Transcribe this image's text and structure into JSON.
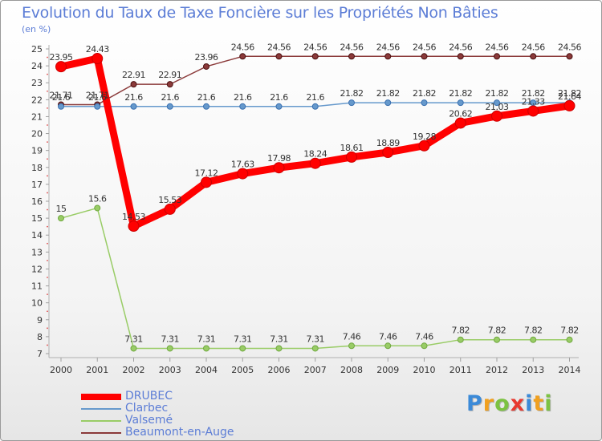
{
  "title": "Evolution du Taux de Taxe Foncière sur les Propriétés Non Bâties",
  "unit_label": "(en %)",
  "logo": {
    "letters": [
      {
        "ch": "P",
        "color": "#3b8ad8"
      },
      {
        "ch": "r",
        "color": "#f0a020"
      },
      {
        "ch": "o",
        "color": "#7cc242"
      },
      {
        "ch": "x",
        "color": "#e8382f"
      },
      {
        "ch": "i",
        "color": "#3b8ad8"
      },
      {
        "ch": "t",
        "color": "#f0a020"
      },
      {
        "ch": "i",
        "color": "#7cc242"
      }
    ]
  },
  "chart_data": {
    "type": "line",
    "title": "Evolution du Taux de Taxe Foncière sur les Propriétés Non Bâties",
    "ylabel": "(en %)",
    "xlabel": "",
    "categories": [
      "2000",
      "2001",
      "2002",
      "2003",
      "2004",
      "2005",
      "2006",
      "2007",
      "2008",
      "2009",
      "2010",
      "2011",
      "2012",
      "2013",
      "2014"
    ],
    "ylim": [
      7,
      25
    ],
    "yticks": [
      7,
      8,
      9,
      10,
      11,
      12,
      13,
      14,
      15,
      16,
      17,
      18,
      19,
      20,
      21,
      22,
      23,
      24,
      25
    ],
    "grid": false,
    "series": [
      {
        "name": "DRUBEC",
        "color": "#ff0000",
        "stroke": "#e00000",
        "values": [
          23.95,
          24.43,
          14.53,
          15.53,
          17.12,
          17.63,
          17.98,
          18.24,
          18.61,
          18.89,
          19.28,
          20.62,
          21.03,
          21.33,
          21.64
        ],
        "labels": [
          "23.95",
          "24.43",
          "14.53",
          "15.53",
          "17.12",
          "17.63",
          "17.98",
          "18.24",
          "18.61",
          "18.89",
          "19.28",
          "20.62",
          "21.03",
          "21.33",
          "21.64"
        ]
      },
      {
        "name": "Clarbec",
        "color": "#6699cc",
        "stroke": "#4a80c0",
        "values": [
          21.6,
          21.6,
          21.6,
          21.6,
          21.6,
          21.6,
          21.6,
          21.6,
          21.82,
          21.82,
          21.82,
          21.82,
          21.82,
          21.82,
          21.82
        ],
        "labels": [
          "21.6",
          "21.6",
          "21.6",
          "21.6",
          "21.6",
          "21.6",
          "21.6",
          "21.6",
          "21.82",
          "21.82",
          "21.82",
          "21.82",
          "21.82",
          "21.82",
          "21.82"
        ]
      },
      {
        "name": "Valsemé",
        "color": "#99cc66",
        "stroke": "#88c050",
        "values": [
          15,
          15.6,
          7.31,
          7.31,
          7.31,
          7.31,
          7.31,
          7.31,
          7.46,
          7.46,
          7.46,
          7.82,
          7.82,
          7.82,
          7.82
        ],
        "labels": [
          "15",
          "15.6",
          "7.31",
          "7.31",
          "7.31",
          "7.31",
          "7.31",
          "7.31",
          "7.46",
          "7.46",
          "7.46",
          "7.82",
          "7.82",
          "7.82",
          "7.82"
        ]
      },
      {
        "name": "Beaumont-en-Auge",
        "color": "#8b3a3a",
        "stroke": "#7a2a2a",
        "values": [
          21.71,
          21.71,
          22.91,
          22.91,
          23.96,
          24.56,
          24.56,
          24.56,
          24.56,
          24.56,
          24.56,
          24.56,
          24.56,
          24.56,
          24.56
        ],
        "labels": [
          "21.71",
          "21.71",
          "22.91",
          "22.91",
          "23.96",
          "24.56",
          "24.56",
          "24.56",
          "24.56",
          "24.56",
          "24.56",
          "24.56",
          "24.56",
          "24.56",
          "24.56"
        ]
      }
    ]
  }
}
